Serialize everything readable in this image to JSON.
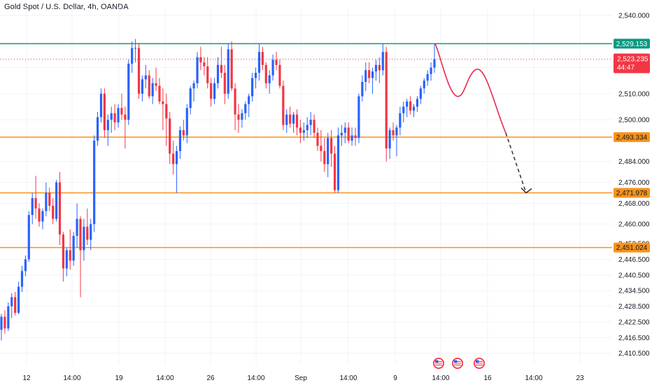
{
  "header": {
    "title": "Gold Spot / U.S. Dollar, 4h, OANDA"
  },
  "colors": {
    "up": "#2962ff",
    "down": "#f23645",
    "resistance": "#089981",
    "support": "#f7931a",
    "projection": "#e91e43",
    "projection_dash": "#3b2b22",
    "grid": "#f0f3fa",
    "axis_text": "#131722"
  },
  "price_axis": {
    "ticks": [
      "2,540.000",
      "2,520.000",
      "2,510.000",
      "2,500.000",
      "2,484.000",
      "2,476.000",
      "2,468.000",
      "2,460.000",
      "2,452.500",
      "2,446.500",
      "2,440.500",
      "2,434.500",
      "2,428.500",
      "2,422.500",
      "2,416.500",
      "2,410.500"
    ],
    "tick_values": [
      2540,
      2520,
      2510,
      2500,
      2484,
      2476,
      2468,
      2460,
      2452.5,
      2446.5,
      2440.5,
      2434.5,
      2428.5,
      2422.5,
      2416.5,
      2410.5
    ]
  },
  "time_axis": {
    "ticks": [
      "12",
      "14:00",
      "19",
      "14:00",
      "26",
      "14:00",
      "Sep",
      "14:00",
      "9",
      "14:00",
      "16",
      "14:00",
      "23"
    ]
  },
  "levels": [
    {
      "name": "resistance",
      "label": "2,529.153",
      "value": 2529.153,
      "color_key": "resistance"
    },
    {
      "name": "support-1",
      "label": "2,493.334",
      "value": 2493.334,
      "color_key": "support"
    },
    {
      "name": "support-2",
      "label": "2,471.978",
      "value": 2471.978,
      "color_key": "support"
    },
    {
      "name": "support-3",
      "label": "2,451.024",
      "value": 2451.024,
      "color_key": "support"
    }
  ],
  "current_price": {
    "label": "2,523.235",
    "countdown": "44:47",
    "value": 2523.235
  },
  "events": [
    {
      "icon": "us-flag-icon"
    },
    {
      "icon": "us-flag-icon"
    },
    {
      "icon": "us-flag-icon"
    }
  ],
  "chart_data": {
    "type": "candlestick",
    "symbol": "XAUUSD",
    "timeframe": "4h",
    "ylim": [
      2408,
      2546
    ],
    "candles": [
      [
        2419.5,
        2425.6,
        2415.4,
        2424.5
      ],
      [
        2424.5,
        2427.0,
        2418.0,
        2420.0
      ],
      [
        2420.0,
        2430.0,
        2419.0,
        2428.5
      ],
      [
        2428.5,
        2433.5,
        2424.0,
        2432.0
      ],
      [
        2432.0,
        2434.0,
        2425.0,
        2426.0
      ],
      [
        2426.0,
        2438.0,
        2425.5,
        2436.0
      ],
      [
        2436.0,
        2444.0,
        2434.0,
        2442.0
      ],
      [
        2442.0,
        2448.0,
        2440.0,
        2446.5
      ],
      [
        2446.5,
        2465.0,
        2445.5,
        2463.5
      ],
      [
        2463.5,
        2472.0,
        2460.0,
        2470.0
      ],
      [
        2470.0,
        2478.5,
        2462.0,
        2466.0
      ],
      [
        2466.0,
        2468.0,
        2459.0,
        2461.0
      ],
      [
        2461.0,
        2466.0,
        2458.0,
        2465.0
      ],
      [
        2465.0,
        2476.0,
        2463.0,
        2472.0
      ],
      [
        2472.0,
        2474.0,
        2465.0,
        2467.0
      ],
      [
        2467.0,
        2470.0,
        2460.0,
        2462.0
      ],
      [
        2462.0,
        2477.0,
        2461.0,
        2476.0
      ],
      [
        2476.0,
        2480.0,
        2452.0,
        2456.0
      ],
      [
        2456.0,
        2457.0,
        2438.0,
        2443.0
      ],
      [
        2443.0,
        2451.0,
        2440.0,
        2450.0
      ],
      [
        2450.0,
        2458.0,
        2442.5,
        2446.0
      ],
      [
        2446.0,
        2457.0,
        2444.0,
        2455.5
      ],
      [
        2455.5,
        2468.0,
        2451.0,
        2462.0
      ],
      [
        2462.0,
        2463.0,
        2432.0,
        2450.0
      ],
      [
        2450.0,
        2462.0,
        2446.0,
        2459.0
      ],
      [
        2459.0,
        2466.0,
        2452.0,
        2454.0
      ],
      [
        2454.0,
        2462.0,
        2450.0,
        2460.0
      ],
      [
        2460.0,
        2494.0,
        2457.0,
        2492.0
      ],
      [
        2492.0,
        2503.0,
        2490.0,
        2501.0
      ],
      [
        2501.0,
        2512.0,
        2499.0,
        2510.0
      ],
      [
        2510.0,
        2512.0,
        2493.0,
        2496.0
      ],
      [
        2496.0,
        2502.0,
        2490.0,
        2500.0
      ],
      [
        2500.0,
        2505.0,
        2495.0,
        2502.5
      ],
      [
        2502.5,
        2506.0,
        2496.0,
        2499.0
      ],
      [
        2499.0,
        2506.0,
        2497.0,
        2504.5
      ],
      [
        2504.5,
        2510.0,
        2500.0,
        2502.0
      ],
      [
        2502.0,
        2505.0,
        2489.0,
        2500.0
      ],
      [
        2500.0,
        2523.0,
        2498.0,
        2521.5
      ],
      [
        2521.5,
        2530.0,
        2518.0,
        2527.5
      ],
      [
        2527.5,
        2531.0,
        2522.0,
        2527.5
      ],
      [
        2527.5,
        2529.0,
        2508.0,
        2510.0
      ],
      [
        2510.0,
        2517.0,
        2507.0,
        2515.5
      ],
      [
        2515.5,
        2521.0,
        2512.0,
        2517.0
      ],
      [
        2517.0,
        2519.0,
        2508.0,
        2509.0
      ],
      [
        2509.0,
        2516.0,
        2506.0,
        2514.0
      ],
      [
        2514.0,
        2520.0,
        2511.0,
        2513.0
      ],
      [
        2513.0,
        2516.0,
        2506.0,
        2507.0
      ],
      [
        2507.0,
        2512.0,
        2496.0,
        2506.0
      ],
      [
        2506.0,
        2510.0,
        2490.0,
        2500.5
      ],
      [
        2500.5,
        2503.0,
        2483.0,
        2487.0
      ],
      [
        2487.0,
        2492.0,
        2479.0,
        2483.0
      ],
      [
        2483.0,
        2490.0,
        2472.0,
        2488.0
      ],
      [
        2488.0,
        2497.5,
        2485.0,
        2496.0
      ],
      [
        2496.0,
        2500.0,
        2492.0,
        2494.0
      ],
      [
        2494.0,
        2506.0,
        2491.0,
        2504.5
      ],
      [
        2504.5,
        2513.0,
        2502.0,
        2512.0
      ],
      [
        2512.0,
        2515.0,
        2507.0,
        2514.0
      ],
      [
        2514.0,
        2526.0,
        2512.0,
        2524.0
      ],
      [
        2524.0,
        2528.0,
        2519.0,
        2522.0
      ],
      [
        2522.0,
        2524.0,
        2517.0,
        2520.5
      ],
      [
        2520.5,
        2524.0,
        2512.0,
        2514.0
      ],
      [
        2514.0,
        2516.0,
        2505.0,
        2508.0
      ],
      [
        2508.0,
        2516.0,
        2506.0,
        2514.0
      ],
      [
        2514.0,
        2524.0,
        2512.0,
        2521.0
      ],
      [
        2521.0,
        2528.0,
        2516.0,
        2518.0
      ],
      [
        2518.0,
        2521.0,
        2506.0,
        2510.0
      ],
      [
        2510.0,
        2529.0,
        2508.0,
        2527.0
      ],
      [
        2527.0,
        2530.0,
        2511.0,
        2512.0
      ],
      [
        2512.0,
        2514.0,
        2496.0,
        2502.0
      ],
      [
        2502.0,
        2506.0,
        2495.0,
        2500.0
      ],
      [
        2500.0,
        2504.0,
        2497.0,
        2502.5
      ],
      [
        2502.5,
        2507.0,
        2500.0,
        2506.0
      ],
      [
        2506.0,
        2510.0,
        2501.0,
        2509.0
      ],
      [
        2509.0,
        2518.0,
        2507.0,
        2516.0
      ],
      [
        2516.0,
        2520.0,
        2512.0,
        2518.0
      ],
      [
        2518.0,
        2529.0,
        2515.0,
        2526.0
      ],
      [
        2526.0,
        2528.0,
        2519.0,
        2521.0
      ],
      [
        2521.0,
        2522.0,
        2512.0,
        2514.0
      ],
      [
        2514.0,
        2519.0,
        2510.0,
        2517.0
      ],
      [
        2517.0,
        2525.0,
        2515.0,
        2523.0
      ],
      [
        2523.0,
        2526.0,
        2519.0,
        2521.0
      ],
      [
        2521.0,
        2523.0,
        2512.0,
        2513.0
      ],
      [
        2513.0,
        2515.0,
        2496.0,
        2498.0
      ],
      [
        2498.0,
        2504.0,
        2495.0,
        2502.0
      ],
      [
        2502.0,
        2505.0,
        2497.0,
        2498.5
      ],
      [
        2498.5,
        2503.0,
        2495.0,
        2502.0
      ],
      [
        2502.0,
        2504.0,
        2494.0,
        2497.0
      ],
      [
        2497.0,
        2500.0,
        2491.0,
        2495.0
      ],
      [
        2495.0,
        2499.0,
        2492.0,
        2496.0
      ],
      [
        2496.0,
        2501.0,
        2493.0,
        2498.0
      ],
      [
        2498.0,
        2503.0,
        2494.0,
        2500.0
      ],
      [
        2500.0,
        2502.0,
        2493.0,
        2495.0
      ],
      [
        2495.0,
        2497.0,
        2488.0,
        2490.0
      ],
      [
        2490.0,
        2496.0,
        2484.0,
        2488.0
      ],
      [
        2488.0,
        2493.0,
        2480.0,
        2483.0
      ],
      [
        2483.0,
        2495.0,
        2478.0,
        2493.0
      ],
      [
        2493.0,
        2496.0,
        2482.0,
        2487.0
      ],
      [
        2487.0,
        2490.0,
        2472.0,
        2473.0
      ],
      [
        2473.0,
        2497.0,
        2472.0,
        2494.0
      ],
      [
        2494.0,
        2498.0,
        2490.0,
        2495.0
      ],
      [
        2495.0,
        2499.0,
        2491.0,
        2497.0
      ],
      [
        2497.0,
        2499.0,
        2491.0,
        2492.0
      ],
      [
        2492.0,
        2497.0,
        2490.0,
        2494.0
      ],
      [
        2494.0,
        2497.0,
        2490.0,
        2493.0
      ],
      [
        2493.0,
        2510.0,
        2491.0,
        2509.0
      ],
      [
        2509.0,
        2517.0,
        2507.0,
        2514.5
      ],
      [
        2514.5,
        2522.0,
        2511.0,
        2519.0
      ],
      [
        2519.0,
        2522.0,
        2514.0,
        2516.0
      ],
      [
        2516.0,
        2520.0,
        2510.0,
        2518.5
      ],
      [
        2518.5,
        2523.0,
        2515.0,
        2521.0
      ],
      [
        2521.0,
        2524.0,
        2514.0,
        2519.0
      ],
      [
        2519.0,
        2529.0,
        2517.0,
        2526.0
      ],
      [
        2526.0,
        2528.0,
        2484.0,
        2489.0
      ],
      [
        2489.0,
        2497.0,
        2485.0,
        2496.0
      ],
      [
        2496.0,
        2499.0,
        2492.0,
        2494.0
      ],
      [
        2494.0,
        2498.0,
        2486.0,
        2497.0
      ],
      [
        2497.0,
        2505.0,
        2494.0,
        2502.5
      ],
      [
        2502.5,
        2507.0,
        2499.0,
        2505.0
      ],
      [
        2505.0,
        2508.0,
        2501.0,
        2507.0
      ],
      [
        2507.0,
        2509.0,
        2502.0,
        2503.5
      ],
      [
        2503.5,
        2506.0,
        2501.0,
        2505.0
      ],
      [
        2505.0,
        2509.0,
        2503.0,
        2508.0
      ],
      [
        2508.0,
        2513.0,
        2506.0,
        2512.0
      ],
      [
        2512.0,
        2516.0,
        2510.0,
        2515.0
      ],
      [
        2515.0,
        2519.0,
        2513.0,
        2517.5
      ],
      [
        2517.5,
        2522.0,
        2515.0,
        2520.0
      ],
      [
        2520.0,
        2529.0,
        2518.0,
        2523.235
      ]
    ],
    "projection_solid": [
      [
        2529.153,
        "now"
      ],
      [
        2520,
        ""
      ],
      [
        2510,
        ""
      ],
      [
        2512,
        ""
      ],
      [
        2520,
        ""
      ],
      [
        2519,
        ""
      ],
      [
        2505,
        ""
      ],
      [
        2493.3,
        ""
      ]
    ],
    "projection_dashed_end": 2471.978
  }
}
